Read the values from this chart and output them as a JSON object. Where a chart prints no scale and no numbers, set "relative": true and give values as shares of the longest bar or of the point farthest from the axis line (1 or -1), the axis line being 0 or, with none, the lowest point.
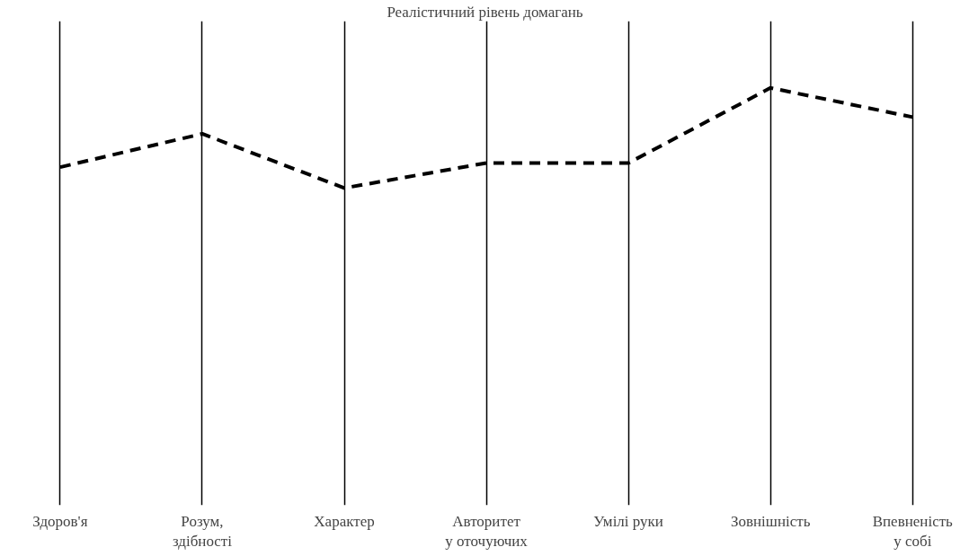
{
  "chart_data": {
    "type": "line",
    "title": "Реалістичний рівень домагань",
    "relative": true,
    "categories": [
      "Здоров'я",
      "Розум,\nздібності",
      "Характер",
      "Авторитет\nу оточуючих",
      "Умілі руки",
      "Зовнішність",
      "Впевненість\nу собі"
    ],
    "series": [
      {
        "color": "#000000",
        "values": [
          0.81,
          0.89,
          0.76,
          0.82,
          0.82,
          1.0,
          0.93
        ]
      }
    ],
    "line_style": "dashed",
    "marker": "none",
    "grid": "x"
  }
}
